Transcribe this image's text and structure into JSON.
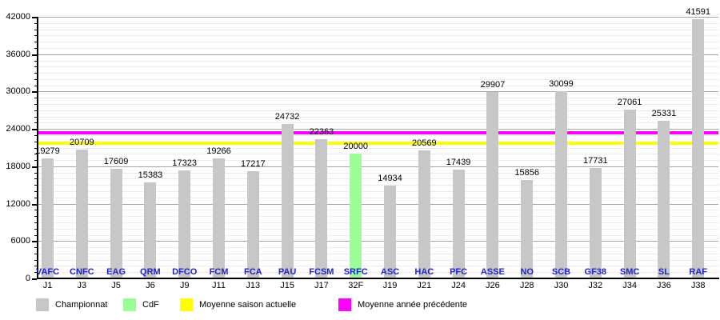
{
  "chart_data": {
    "type": "bar",
    "title": "",
    "xlabel": "",
    "ylabel": "",
    "categories": [
      "VAFC",
      "CNFC",
      "EAG",
      "QRM",
      "DFCO",
      "FCM",
      "FCA",
      "PAU",
      "FCSM",
      "SRFC",
      "ASC",
      "HAC",
      "PFC",
      "ASSE",
      "NO",
      "SCB",
      "GF38",
      "SMC",
      "SL",
      "RAF"
    ],
    "x_sub_labels": [
      "J1",
      "J3",
      "J5",
      "J6",
      "J9",
      "J11",
      "J13",
      "J15",
      "J17",
      "32F",
      "J19",
      "J21",
      "J24",
      "J26",
      "J28",
      "J30",
      "J32",
      "J34",
      "J36",
      "J38"
    ],
    "values": [
      19279,
      20709,
      17609,
      15383,
      17323,
      19266,
      17217,
      24732,
      22363,
      20000,
      14934,
      20569,
      17439,
      29907,
      15856,
      30099,
      17731,
      27061,
      25331,
      41591
    ],
    "cdf_index": 9,
    "bar_color_championnat": "#c7c7c7",
    "bar_color_cdf": "#99ff99",
    "category_label_color": "#2222cc",
    "reference_lines": [
      {
        "name": "Moyenne saison actuelle",
        "value": 21720,
        "color": "#ffff00"
      },
      {
        "name": "Moyenne année précédente",
        "value": 23400,
        "color": "#ff00ff"
      }
    ],
    "ylim": [
      0,
      42000
    ],
    "ytick_step": 6000,
    "yminor_step": 1000,
    "ytick_labels": [
      "0",
      "6000",
      "12000",
      "18000",
      "24000",
      "30000",
      "36000",
      "42000"
    ],
    "grid": true,
    "legend_position": "bottom",
    "legend": [
      {
        "label": "Championnat",
        "color": "#c7c7c7",
        "kind": "bar"
      },
      {
        "label": "CdF",
        "color": "#99ff99",
        "kind": "bar"
      },
      {
        "label": "Moyenne saison actuelle",
        "color": "#ffff00",
        "kind": "line"
      },
      {
        "label": "Moyenne année précédente",
        "color": "#ff00ff",
        "kind": "line"
      }
    ]
  }
}
